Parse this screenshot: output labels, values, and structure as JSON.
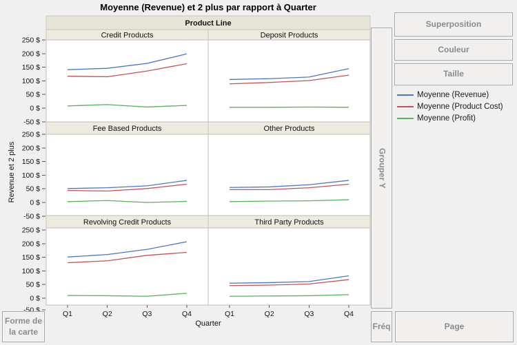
{
  "window": {
    "background": "#f0f0f0"
  },
  "title": "Moyenne (Revenue) et 2 plus par rapport à Quarter",
  "drop_zones": {
    "superposition": "Superposition",
    "couleur": "Couleur",
    "taille": "Taille",
    "grouper_y": "Grouper Y",
    "freq": "Fréq",
    "page": "Page",
    "forme_de_la_carte": "Forme de la carte"
  },
  "legend": {
    "items": [
      {
        "label": "Moyenne (Revenue)",
        "color": "#4a76c9"
      },
      {
        "label": "Moyenne (Product Cost)",
        "color": "#c7505a"
      },
      {
        "label": "Moyenne (Profit)",
        "color": "#55b45c"
      }
    ]
  },
  "chart_data": {
    "type": "line",
    "title": "Moyenne (Revenue) et 2 plus par rapport à Quarter",
    "facet_header": "Product Line",
    "xlabel": "Quarter",
    "ylabel": "Revenue et 2 plus",
    "categories": [
      "Q1",
      "Q2",
      "Q3",
      "Q4"
    ],
    "y_ticks": [
      250,
      200,
      150,
      100,
      50,
      0,
      -50
    ],
    "y_tick_format": "{v} $",
    "ylim": [
      -50,
      250
    ],
    "grid": false,
    "legend_position": "right",
    "series": [
      {
        "name": "Moyenne (Revenue)",
        "color": "#4a76c9"
      },
      {
        "name": "Moyenne (Product Cost)",
        "color": "#c7505a"
      },
      {
        "name": "Moyenne (Profit)",
        "color": "#55b45c"
      }
    ],
    "panels": [
      {
        "title": "Credit Products",
        "values": [
          [
            141,
            146,
            164,
            199
          ],
          [
            117,
            115,
            136,
            163
          ],
          [
            8,
            13,
            4,
            10
          ]
        ]
      },
      {
        "title": "Deposit Products",
        "values": [
          [
            105,
            108,
            114,
            145
          ],
          [
            89,
            94,
            101,
            121
          ],
          [
            3,
            3,
            4,
            3
          ]
        ]
      },
      {
        "title": "Fee Based Products",
        "values": [
          [
            51,
            54,
            61,
            81
          ],
          [
            44,
            42,
            51,
            67
          ],
          [
            3,
            7,
            0,
            4
          ]
        ]
      },
      {
        "title": "Other Products",
        "values": [
          [
            55,
            57,
            65,
            81
          ],
          [
            47,
            47,
            54,
            67
          ],
          [
            3,
            5,
            6,
            10
          ]
        ]
      },
      {
        "title": "Revolving Credit Products",
        "values": [
          [
            151,
            160,
            179,
            207
          ],
          [
            130,
            137,
            157,
            168
          ],
          [
            10,
            9,
            7,
            18
          ]
        ]
      },
      {
        "title": "Third Party Products",
        "values": [
          [
            55,
            57,
            61,
            82
          ],
          [
            46,
            48,
            52,
            68
          ],
          [
            7,
            8,
            9,
            13
          ]
        ]
      }
    ]
  }
}
